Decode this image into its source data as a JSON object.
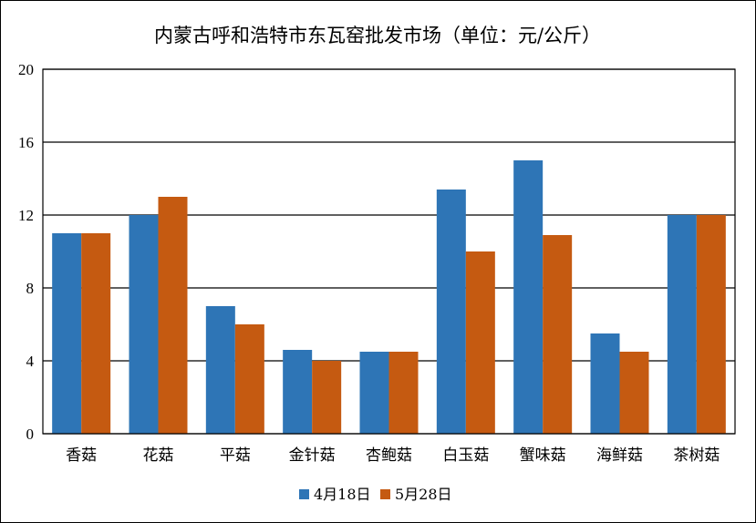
{
  "chart_data": {
    "type": "bar",
    "title": "内蒙古呼和浩特市东瓦窑批发市场（单位：元/公斤）",
    "xlabel": "",
    "ylabel": "",
    "categories": [
      "香菇",
      "花菇",
      "平菇",
      "金针菇",
      "杏鲍菇",
      "白玉菇",
      "蟹味菇",
      "海鲜菇",
      "茶树菇"
    ],
    "series": [
      {
        "name": "4月18日",
        "color": "#2E75B6",
        "values": [
          11,
          12,
          7,
          4.6,
          4.5,
          13.4,
          15,
          5.5,
          12
        ]
      },
      {
        "name": "5月28日",
        "color": "#C55A11",
        "values": [
          11,
          13,
          6,
          4,
          4.5,
          10,
          10.9,
          4.5,
          12
        ]
      }
    ],
    "ylim": [
      0,
      20
    ],
    "yticks": [
      "0",
      "4",
      "8",
      "12",
      "16",
      "20"
    ],
    "grid": true,
    "legend_position": "bottom-center"
  }
}
